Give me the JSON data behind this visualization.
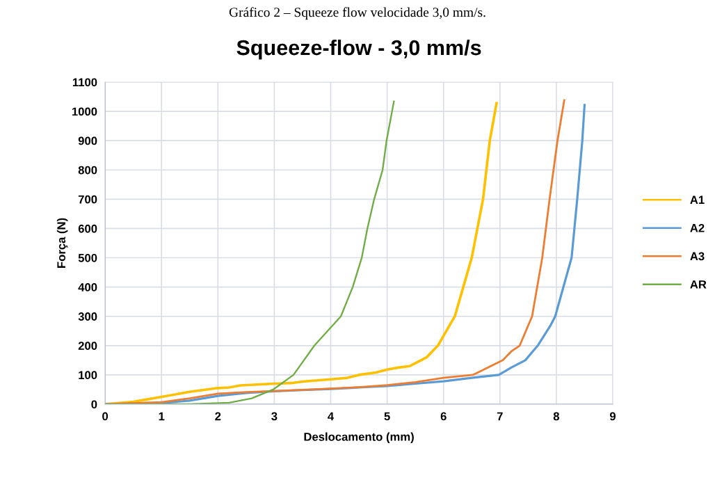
{
  "chart_data": {
    "type": "line",
    "title": "Squeeze-flow - 3,0 mm/s",
    "xlabel": "Deslocamento (mm)",
    "ylabel": "Força (N)",
    "annotations": [
      "Gráfico 2 – Squeeze flow velocidade 3,0 mm/s."
    ],
    "xlim": [
      0,
      9
    ],
    "ylim": [
      0,
      1100
    ],
    "xticks": [
      0,
      1,
      2,
      3,
      4,
      5,
      6,
      7,
      8,
      9
    ],
    "yticks": [
      0,
      100,
      200,
      300,
      400,
      500,
      600,
      700,
      800,
      900,
      1000,
      1100
    ],
    "grid": true,
    "legend": "right",
    "marker": "none",
    "line_style": "solid",
    "series": [
      {
        "name": "A1",
        "color": "#ffc000",
        "x": [
          0,
          0.5,
          1,
          1.5,
          2,
          2.2,
          2.4,
          3,
          3.3,
          3.5,
          4,
          4.3,
          4.5,
          4.8,
          5,
          5.2,
          5.4,
          5.5,
          5.7,
          5.9,
          6.2,
          6.5,
          6.7,
          6.82,
          6.94
        ],
        "values": [
          0,
          8,
          25,
          42,
          55,
          57,
          64,
          70,
          72,
          77,
          85,
          90,
          100,
          108,
          118,
          125,
          130,
          140,
          160,
          200,
          300,
          500,
          700,
          900,
          1028
        ]
      },
      {
        "name": "A2",
        "color": "#5b9bd5",
        "x": [
          0,
          1,
          1.5,
          2,
          2.5,
          3,
          3.5,
          4,
          4.5,
          5,
          5.5,
          6,
          6.5,
          6.98,
          7.2,
          7.45,
          7.67,
          7.9,
          7.98,
          8.27,
          8.37,
          8.46,
          8.5
        ],
        "values": [
          0,
          4,
          12,
          28,
          38,
          44,
          48,
          52,
          57,
          62,
          70,
          78,
          90,
          100,
          125,
          150,
          200,
          270,
          300,
          500,
          700,
          900,
          1022
        ]
      },
      {
        "name": "A3",
        "color": "#ed7d31",
        "x": [
          0,
          1,
          1.5,
          2,
          2.5,
          3,
          3.5,
          4,
          4.5,
          5,
          5.5,
          6,
          6.52,
          7.05,
          7.2,
          7.35,
          7.57,
          7.75,
          7.88,
          8.02,
          8.14
        ],
        "values": [
          0,
          7,
          20,
          36,
          41,
          45,
          49,
          53,
          58,
          65,
          75,
          90,
          100,
          150,
          180,
          200,
          300,
          500,
          700,
          900,
          1038
        ]
      },
      {
        "name": "AR",
        "color": "#70ad47",
        "x": [
          0,
          1.5,
          2.2,
          2.6,
          2.98,
          3.34,
          3.71,
          4.18,
          4.39,
          4.55,
          4.65,
          4.77,
          4.92,
          4.99,
          5.12
        ],
        "values": [
          0,
          0,
          5,
          20,
          50,
          100,
          200,
          300,
          400,
          500,
          600,
          700,
          800,
          900,
          1034
        ]
      }
    ]
  }
}
